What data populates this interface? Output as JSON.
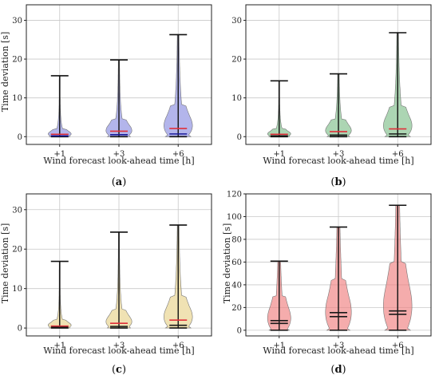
{
  "chart_data": [
    {
      "type": "violin",
      "panel_label": "a",
      "xlabel": "Wind forecast look-ahead time [h]",
      "ylabel": "Time deviation [s]",
      "categories": [
        "+1",
        "+3",
        "+6"
      ],
      "ylim": [
        -2,
        34
      ],
      "yticks": [
        0,
        10,
        20,
        30
      ],
      "grid": true,
      "fill_color": "#8a8ee0",
      "mean_color": "#e0303a",
      "median_color": "#1a1a9a",
      "series": [
        {
          "category": "+1",
          "min": 0,
          "max": 15.7,
          "mean": 0.6,
          "median": 0.2,
          "body_top": 2.0
        },
        {
          "category": "+3",
          "min": 0,
          "max": 19.8,
          "mean": 1.4,
          "median": 0.5,
          "body_top": 4.5
        },
        {
          "category": "+6",
          "min": 0,
          "max": 26.3,
          "mean": 2.1,
          "median": 0.7,
          "body_top": 8.0
        }
      ]
    },
    {
      "type": "violin",
      "panel_label": "b",
      "xlabel": "Wind forecast look-ahead time [h]",
      "ylabel": "",
      "categories": [
        "+1",
        "+3",
        "+6"
      ],
      "ylim": [
        -2,
        34
      ],
      "yticks": [
        0,
        10,
        20,
        30
      ],
      "grid": true,
      "fill_color": "#7fbf8a",
      "mean_color": "#e0303a",
      "median_color": "#1a1a1a",
      "series": [
        {
          "category": "+1",
          "min": 0,
          "max": 14.4,
          "mean": 0.6,
          "median": 0.2,
          "body_top": 2.0
        },
        {
          "category": "+3",
          "min": 0,
          "max": 16.2,
          "mean": 1.3,
          "median": 0.4,
          "body_top": 4.5
        },
        {
          "category": "+6",
          "min": 0,
          "max": 26.8,
          "mean": 2.0,
          "median": 0.7,
          "body_top": 8.0
        }
      ]
    },
    {
      "type": "violin",
      "panel_label": "c",
      "xlabel": "Wind forecast look-ahead time [h]",
      "ylabel": "Time deviation [s]",
      "categories": [
        "+1",
        "+3",
        "+6"
      ],
      "ylim": [
        -2,
        34
      ],
      "yticks": [
        0,
        10,
        20,
        30
      ],
      "grid": true,
      "fill_color": "#e8d28a",
      "mean_color": "#e0303a",
      "median_color": "#1a1a1a",
      "series": [
        {
          "category": "+1",
          "min": 0,
          "max": 16.9,
          "mean": 0.5,
          "median": 0.2,
          "body_top": 2.0
        },
        {
          "category": "+3",
          "min": 0,
          "max": 24.3,
          "mean": 1.2,
          "median": 0.4,
          "body_top": 4.5
        },
        {
          "category": "+6",
          "min": 0,
          "max": 26.1,
          "mean": 2.0,
          "median": 0.7,
          "body_top": 8.0
        }
      ]
    },
    {
      "type": "violin",
      "panel_label": "d",
      "xlabel": "Wind forecast look-ahead time [h]",
      "ylabel": "Time deviation [s]",
      "categories": [
        "+1",
        "+3",
        "+6"
      ],
      "ylim": [
        -5,
        120
      ],
      "yticks": [
        0,
        20,
        40,
        60,
        80,
        100,
        120
      ],
      "grid": true,
      "fill_color": "#f08080",
      "mean_color": "#1a1a1a",
      "median_color": "#1a1a1a",
      "series": [
        {
          "category": "+1",
          "min": 0,
          "max": 60.8,
          "mean": 8.5,
          "median": 6.0,
          "body_top": 30
        },
        {
          "category": "+3",
          "min": 0,
          "max": 90.8,
          "mean": 15.5,
          "median": 12.0,
          "body_top": 45
        },
        {
          "category": "+6",
          "min": 0,
          "max": 110.0,
          "mean": 17.0,
          "median": 14.0,
          "body_top": 60
        }
      ]
    }
  ]
}
